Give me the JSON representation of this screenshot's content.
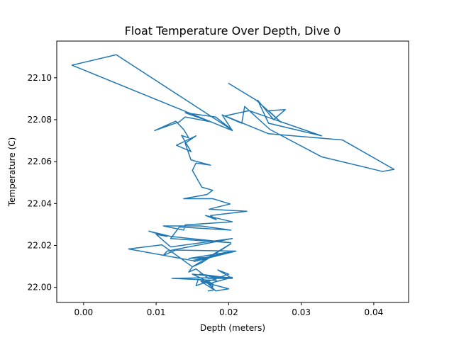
{
  "chart_data": {
    "type": "line",
    "title": "Float Temperature Over Depth, Dive 0",
    "xlabel": "Depth (meters)",
    "ylabel": "Temperature (C)",
    "xlim": [
      -0.0037,
      0.0448
    ],
    "ylim": [
      21.9928,
      22.1175
    ],
    "x_ticks": [
      0.0,
      0.01,
      0.02,
      0.03,
      0.04
    ],
    "x_tick_labels": [
      "0.00",
      "0.01",
      "0.02",
      "0.03",
      "0.04"
    ],
    "y_ticks": [
      22.0,
      22.02,
      22.04,
      22.06,
      22.08,
      22.1
    ],
    "y_tick_labels": [
      "22.00",
      "22.02",
      "22.04",
      "22.06",
      "22.08",
      "22.10"
    ],
    "grid": false,
    "line_color": "#1f77b4",
    "series": [
      {
        "x": [
          0.02,
          0.0238,
          0.0272,
          0.0255,
          0.0278,
          0.0262,
          0.024,
          0.0255,
          0.0328,
          0.0228,
          0.0195,
          0.0255,
          0.0357,
          0.0428,
          0.0412,
          0.0328,
          0.0257,
          0.0222,
          0.0218,
          0.0191,
          0.0205,
          -0.0016,
          0.0045,
          0.0205,
          0.0182,
          0.014,
          0.0175,
          0.014,
          0.0132,
          0.0098,
          0.0127,
          0.0138,
          0.0145,
          0.0135,
          0.0148,
          0.0128,
          0.0155,
          0.014,
          0.0148,
          0.0175,
          0.0155,
          0.015,
          0.0163,
          0.0178,
          0.017,
          0.0138,
          0.0178,
          0.0202,
          0.0173,
          0.0225,
          0.0175,
          0.0183,
          0.0168,
          0.0205,
          0.014,
          0.0138,
          0.011,
          0.0162,
          0.0203,
          0.0132,
          0.012,
          0.0203,
          0.012,
          0.009,
          0.0115,
          0.01,
          0.012,
          0.0205,
          0.0115,
          0.011,
          0.0127,
          0.021,
          0.0152,
          0.017,
          0.0145,
          0.0208,
          0.015,
          0.0062,
          0.0108,
          0.015,
          0.0203,
          0.0163,
          0.015,
          0.0145,
          0.0155,
          0.0172,
          0.0205,
          0.015,
          0.0178,
          0.0158,
          0.0155,
          0.02,
          0.0185,
          0.0205,
          0.016,
          0.018,
          0.0183,
          0.0122,
          0.0205,
          0.0178,
          0.0178,
          0.017,
          0.0182,
          0.02,
          0.0162,
          0.018,
          0.0172
        ],
        "y": [
          22.0973,
          22.0893,
          22.0788,
          22.0843,
          22.0848,
          22.08,
          22.0893,
          22.0783,
          22.0723,
          22.0843,
          22.0818,
          22.0733,
          22.0703,
          22.0563,
          22.0553,
          22.0623,
          22.0753,
          22.0863,
          22.0783,
          22.0823,
          22.0748,
          22.106,
          22.111,
          22.075,
          22.0813,
          22.0833,
          22.079,
          22.0813,
          22.079,
          22.0748,
          22.0793,
          22.0753,
          22.0713,
          22.0725,
          22.0648,
          22.0678,
          22.0723,
          22.0688,
          22.0608,
          22.0583,
          22.0593,
          22.0558,
          22.0478,
          22.0463,
          22.0443,
          22.0423,
          22.0423,
          22.0398,
          22.0373,
          22.0363,
          22.0343,
          22.0323,
          22.0343,
          22.0313,
          22.0298,
          22.0273,
          22.0293,
          22.0293,
          22.0273,
          22.0288,
          22.0233,
          22.0213,
          22.0243,
          22.0268,
          22.0243,
          22.0253,
          22.0193,
          22.0233,
          22.0173,
          22.0153,
          22.0178,
          22.0173,
          22.0123,
          22.0143,
          22.0138,
          22.0173,
          22.0128,
          22.0183,
          22.0203,
          22.0098,
          22.0208,
          22.0118,
          22.0098,
          22.0073,
          22.0088,
          22.0043,
          22.0043,
          22.0063,
          22.0018,
          22.0038,
          22.0008,
          22.0063,
          22.0083,
          22.0043,
          22.0063,
          22.0048,
          22.0033,
          22.0043,
          22.0048,
          22.0023,
          22.0003,
          22.0023,
          21.9983,
          21.9993,
          22.0028,
          21.9988,
          21.9983
        ]
      }
    ]
  }
}
